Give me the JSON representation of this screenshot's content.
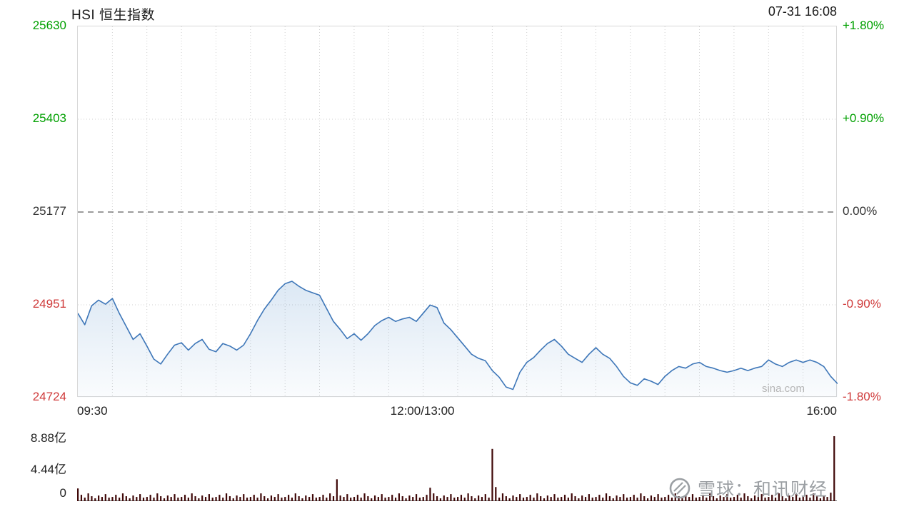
{
  "header": {
    "title": "HSI 恒生指数",
    "timestamp": "07-31 16:08"
  },
  "watermarks": {
    "sina": "sina.com",
    "branding": "雪球：和讯财经"
  },
  "colors": {
    "up": "#00a000",
    "down": "#cf3a3a",
    "neutral": "#333333",
    "line": "#3d76b8",
    "area_top": "rgba(95,150,205,0.22)",
    "area_bottom": "rgba(95,150,205,0.03)",
    "volume": "#3f0808",
    "grid": "#cfcfcf"
  },
  "chart_data": {
    "type": "line",
    "title": "HSI 恒生指数",
    "timestamp": "07-31 16:08",
    "prev_close": 25177,
    "y_range": [
      24724,
      25630
    ],
    "y_axis_left": [
      {
        "label": "25630",
        "color": "up"
      },
      {
        "label": "25403",
        "color": "up"
      },
      {
        "label": "25177",
        "color": "neutral"
      },
      {
        "label": "24951",
        "color": "down"
      },
      {
        "label": "24724",
        "color": "down"
      }
    ],
    "y_axis_right": [
      {
        "label": "+1.80%",
        "color": "up"
      },
      {
        "label": "+0.90%",
        "color": "up"
      },
      {
        "label": "0.00%",
        "color": "neutral"
      },
      {
        "label": "-0.90%",
        "color": "down"
      },
      {
        "label": "-1.80%",
        "color": "down"
      }
    ],
    "x_axis": {
      "session": "09:30-12:00 / 13:00-16:00",
      "gridline_intervals": 22,
      "labels": [
        {
          "text": "09:30",
          "pos": 0,
          "align": "left"
        },
        {
          "text": "12:00/13:00",
          "pos": 0.4545,
          "align": "center"
        },
        {
          "text": "16:00",
          "pos": 1,
          "align": "right"
        }
      ]
    },
    "price_values": [
      24930,
      24902,
      24948,
      24962,
      24952,
      24966,
      24930,
      24898,
      24866,
      24880,
      24850,
      24818,
      24806,
      24830,
      24852,
      24858,
      24840,
      24856,
      24866,
      24842,
      24836,
      24856,
      24850,
      24840,
      24852,
      24880,
      24912,
      24940,
      24962,
      24986,
      25002,
      25008,
      24996,
      24986,
      24980,
      24974,
      24942,
      24910,
      24890,
      24868,
      24880,
      24864,
      24880,
      24900,
      24912,
      24920,
      24910,
      24916,
      24920,
      24910,
      24930,
      24950,
      24944,
      24906,
      24890,
      24870,
      24850,
      24830,
      24820,
      24814,
      24790,
      24774,
      24750,
      24744,
      24786,
      24810,
      24822,
      24840,
      24856,
      24866,
      24850,
      24830,
      24820,
      24810,
      24830,
      24846,
      24830,
      24820,
      24800,
      24776,
      24760,
      24754,
      24770,
      24764,
      24756,
      24776,
      24790,
      24800,
      24796,
      24806,
      24810,
      24800,
      24796,
      24790,
      24786,
      24790,
      24796,
      24790,
      24796,
      24800,
      24816,
      24806,
      24800,
      24810,
      24816,
      24810,
      24816,
      24810,
      24800,
      24776,
      24758
    ],
    "volume_axis": {
      "labels": [
        {
          "text": "8.88亿",
          "value": 8.88
        },
        {
          "text": "4.44亿",
          "value": 4.44
        },
        {
          "text": "0",
          "value": 0
        }
      ],
      "max": 9.3
    },
    "volume_values": [
      1.8,
      0.9,
      0.5,
      1.1,
      0.7,
      0.4,
      0.8,
      0.6,
      1.0,
      0.5,
      0.6,
      0.9,
      0.5,
      1.1,
      0.7,
      0.4,
      0.8,
      0.6,
      1.0,
      0.5,
      0.6,
      0.9,
      0.5,
      1.1,
      0.7,
      0.4,
      0.8,
      0.6,
      1.0,
      0.5,
      0.6,
      0.9,
      0.5,
      1.1,
      0.7,
      0.4,
      0.8,
      0.6,
      1.0,
      0.5,
      0.6,
      0.9,
      0.5,
      1.1,
      0.7,
      0.4,
      0.8,
      0.6,
      1.0,
      0.5,
      0.6,
      0.9,
      0.5,
      1.1,
      0.7,
      0.4,
      0.8,
      0.6,
      1.0,
      0.5,
      0.6,
      0.9,
      0.5,
      1.1,
      0.7,
      0.4,
      0.8,
      0.6,
      1.0,
      0.5,
      0.6,
      0.9,
      0.5,
      1.1,
      0.7,
      3.1,
      0.8,
      0.6,
      1.0,
      0.5,
      0.6,
      0.9,
      0.5,
      1.1,
      0.7,
      0.4,
      0.8,
      0.6,
      1.0,
      0.5,
      0.6,
      0.9,
      0.5,
      1.1,
      0.7,
      0.4,
      0.8,
      0.6,
      1.0,
      0.5,
      0.6,
      0.9,
      1.9,
      1.1,
      0.7,
      0.4,
      0.8,
      0.6,
      1.0,
      0.5,
      0.6,
      0.9,
      0.5,
      1.1,
      0.7,
      0.4,
      0.8,
      0.6,
      1.0,
      0.5,
      7.4,
      2.0,
      0.5,
      1.1,
      0.7,
      0.4,
      0.8,
      0.6,
      1.0,
      0.5,
      0.6,
      0.9,
      0.5,
      1.1,
      0.7,
      0.4,
      0.8,
      0.6,
      1.0,
      0.5,
      0.6,
      0.9,
      0.5,
      1.1,
      0.7,
      0.4,
      0.8,
      0.6,
      1.0,
      0.5,
      0.6,
      0.9,
      0.5,
      1.1,
      0.7,
      0.4,
      0.8,
      0.6,
      1.0,
      0.5,
      0.6,
      0.9,
      0.5,
      1.1,
      0.7,
      0.4,
      0.8,
      0.6,
      1.0,
      0.5,
      0.6,
      0.9,
      0.5,
      1.1,
      0.7,
      0.4,
      0.8,
      0.6,
      1.0,
      0.5,
      0.6,
      0.9,
      0.5,
      1.1,
      0.7,
      0.4,
      0.8,
      0.6,
      1.0,
      0.5,
      0.6,
      0.9,
      0.5,
      1.1,
      0.7,
      0.4,
      0.8,
      0.6,
      1.0,
      0.5,
      0.6,
      0.9,
      0.5,
      1.1,
      0.7,
      0.4,
      0.8,
      0.6,
      1.0,
      0.5,
      0.6,
      0.9,
      0.5,
      1.1,
      0.7,
      0.4,
      0.8,
      0.6,
      1.2,
      9.2
    ]
  }
}
